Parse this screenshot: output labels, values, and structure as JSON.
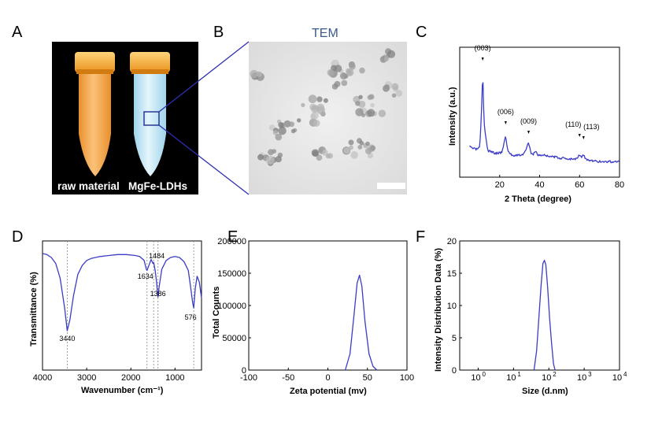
{
  "panels": {
    "A": {
      "label": "A",
      "tube_left_label": "raw material",
      "tube_right_label": "MgFe-LDHs"
    },
    "B": {
      "label": "B",
      "title": "TEM"
    },
    "C": {
      "label": "C",
      "peaks": [
        {
          "hkl": "(003)",
          "x": 11.5
        },
        {
          "hkl": "(006)",
          "x": 23
        },
        {
          "hkl": "(009)",
          "x": 34.5
        },
        {
          "hkl": "(110)",
          "x": 60
        },
        {
          "hkl": "(113)",
          "x": 62
        }
      ]
    },
    "D": {
      "label": "D"
    },
    "E": {
      "label": "E"
    },
    "F": {
      "label": "F"
    }
  },
  "colors": {
    "line": "#3c3cc8",
    "tube_left": "#f4a64a",
    "tube_right": "#b9e2f2",
    "zoom_lines": "#2d2db4",
    "cap": "#f6a623"
  },
  "chart_data": [
    {
      "id": "xrd",
      "type": "line",
      "title": "",
      "xlabel": "2 Theta (degree)",
      "ylabel": "Intensity (a.u.)",
      "xlim": [
        0,
        80
      ],
      "xticks": [
        20,
        40,
        60,
        80
      ],
      "y_ticks_shown": false,
      "series": [
        {
          "name": "XRD",
          "x": [
            5,
            8,
            10,
            10.8,
            11.5,
            12.2,
            14,
            18,
            21,
            22,
            23,
            24,
            26,
            30,
            32,
            33.5,
            34.5,
            35.5,
            37,
            38,
            39,
            42,
            50,
            55,
            58,
            59,
            60,
            61,
            62,
            63,
            65,
            70,
            80
          ],
          "y": [
            0.2,
            0.17,
            0.19,
            0.5,
            1.0,
            0.45,
            0.16,
            0.13,
            0.14,
            0.22,
            0.32,
            0.16,
            0.11,
            0.11,
            0.12,
            0.18,
            0.25,
            0.14,
            0.12,
            0.16,
            0.11,
            0.11,
            0.08,
            0.07,
            0.07,
            0.09,
            0.12,
            0.09,
            0.11,
            0.07,
            0.05,
            0.04,
            0.04
          ]
        }
      ]
    },
    {
      "id": "ftir",
      "type": "line",
      "title": "",
      "xlabel": "Wavenumber (cm⁻¹)",
      "ylabel": "Transmittance (%)",
      "xlim": [
        4000,
        400
      ],
      "xticks": [
        4000,
        3000,
        2000,
        1000
      ],
      "x_reversed": true,
      "y_ticks_shown": false,
      "annotations": [
        {
          "text": "3440",
          "x": 3440
        },
        {
          "text": "1634",
          "x": 1634
        },
        {
          "text": "1484",
          "x": 1484
        },
        {
          "text": "1386",
          "x": 1386
        },
        {
          "text": "576",
          "x": 576
        }
      ],
      "series": [
        {
          "name": "FTIR",
          "x": [
            4000,
            3900,
            3800,
            3700,
            3600,
            3500,
            3440,
            3380,
            3300,
            3200,
            3100,
            3000,
            2900,
            2700,
            2500,
            2300,
            2100,
            1900,
            1800,
            1700,
            1650,
            1634,
            1600,
            1540,
            1500,
            1484,
            1450,
            1420,
            1400,
            1386,
            1360,
            1300,
            1200,
            1100,
            1000,
            900,
            800,
            700,
            650,
            600,
            576,
            540,
            500,
            450,
            400
          ],
          "y": [
            0.95,
            0.94,
            0.91,
            0.85,
            0.7,
            0.4,
            0.17,
            0.28,
            0.52,
            0.74,
            0.83,
            0.88,
            0.9,
            0.92,
            0.93,
            0.94,
            0.94,
            0.93,
            0.92,
            0.88,
            0.79,
            0.78,
            0.82,
            0.89,
            0.85,
            0.86,
            0.78,
            0.67,
            0.57,
            0.51,
            0.61,
            0.79,
            0.88,
            0.91,
            0.92,
            0.91,
            0.87,
            0.78,
            0.62,
            0.45,
            0.4,
            0.6,
            0.72,
            0.66,
            0.5
          ]
        }
      ]
    },
    {
      "id": "zeta",
      "type": "line",
      "title": "",
      "xlabel": "Zeta potential (mv)",
      "ylabel": "Total Counts",
      "xlim": [
        -100,
        100
      ],
      "xticks": [
        -100,
        -50,
        0,
        50,
        100
      ],
      "ylim": [
        0,
        200000
      ],
      "yticks": [
        0,
        50000,
        100000,
        150000,
        200000
      ],
      "series": [
        {
          "name": "Zeta",
          "x": [
            22,
            28,
            33,
            37,
            40,
            43,
            47,
            52,
            57,
            62
          ],
          "y": [
            0,
            25000,
            85000,
            135000,
            147000,
            130000,
            75000,
            25000,
            6000,
            0
          ]
        }
      ]
    },
    {
      "id": "dls",
      "type": "line",
      "title": "",
      "xlabel": "Size (d.nm)",
      "ylabel": "Intensity Distribution Data (%)",
      "xscale": "log",
      "xlim": [
        0.3,
        10000
      ],
      "xticks_exp": [
        0,
        1,
        2,
        3,
        4
      ],
      "ylim": [
        0,
        20
      ],
      "yticks": [
        0,
        5,
        10,
        15,
        20
      ],
      "series": [
        {
          "name": "DLS",
          "x": [
            38,
            45,
            52,
            60,
            68,
            75,
            82,
            92,
            105,
            120,
            135,
            150
          ],
          "y": [
            0,
            3,
            8,
            13,
            16.5,
            17,
            16.3,
            13,
            8,
            4,
            1,
            0
          ]
        }
      ]
    }
  ]
}
